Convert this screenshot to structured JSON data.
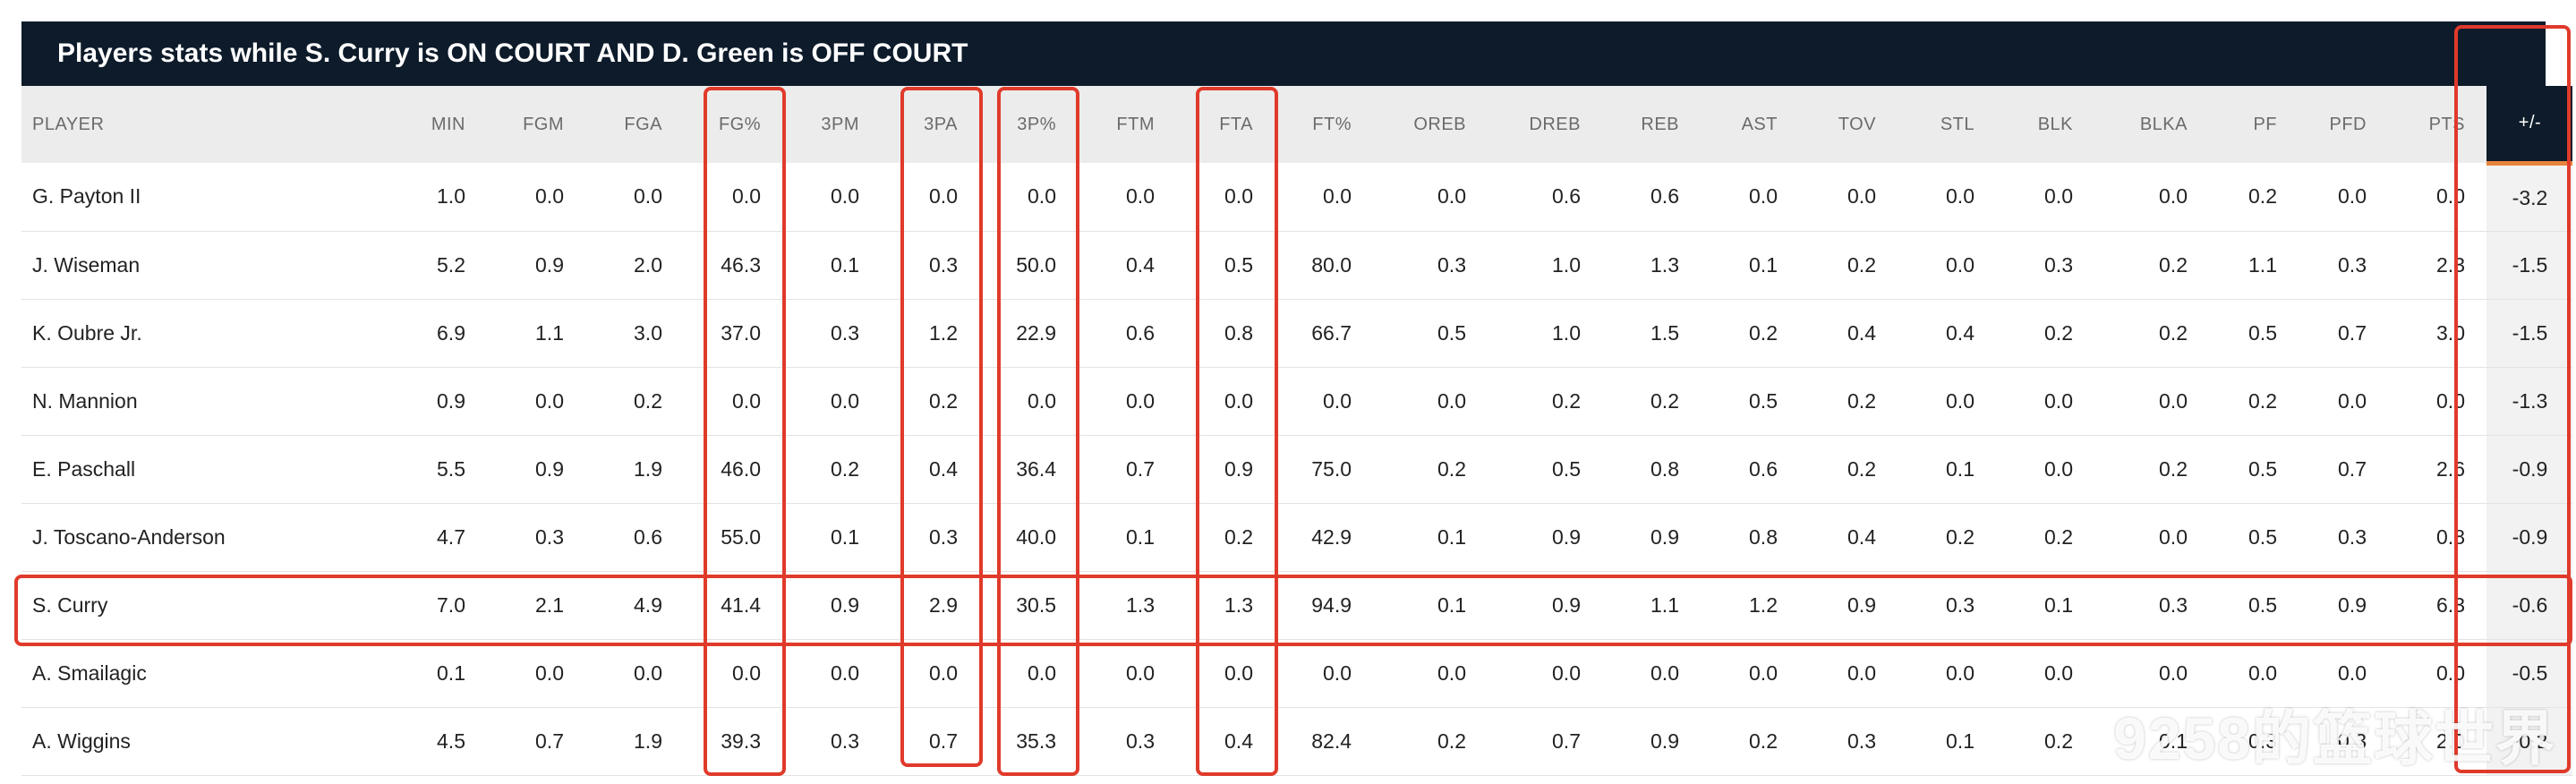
{
  "title": "Players stats while S. Curry is ON COURT AND D. Green is OFF COURT",
  "columns": [
    {
      "key": "player",
      "label": "PLAYER"
    },
    {
      "key": "min",
      "label": "MIN"
    },
    {
      "key": "fgm",
      "label": "FGM"
    },
    {
      "key": "fga",
      "label": "FGA"
    },
    {
      "key": "fg_pct",
      "label": "FG%"
    },
    {
      "key": "tpm",
      "label": "3PM"
    },
    {
      "key": "tpa",
      "label": "3PA"
    },
    {
      "key": "tp_pct",
      "label": "3P%"
    },
    {
      "key": "ftm",
      "label": "FTM"
    },
    {
      "key": "fta",
      "label": "FTA"
    },
    {
      "key": "ft_pct",
      "label": "FT%"
    },
    {
      "key": "oreb",
      "label": "OREB"
    },
    {
      "key": "dreb",
      "label": "DREB"
    },
    {
      "key": "reb",
      "label": "REB"
    },
    {
      "key": "ast",
      "label": "AST"
    },
    {
      "key": "tov",
      "label": "TOV"
    },
    {
      "key": "stl",
      "label": "STL"
    },
    {
      "key": "blk",
      "label": "BLK"
    },
    {
      "key": "blka",
      "label": "BLKA"
    },
    {
      "key": "pf",
      "label": "PF"
    },
    {
      "key": "pfd",
      "label": "PFD"
    },
    {
      "key": "pts",
      "label": "PTS"
    },
    {
      "key": "plus_minus",
      "label": "+/-"
    }
  ],
  "rows": [
    {
      "player": "G. Payton II",
      "min": "1.0",
      "fgm": "0.0",
      "fga": "0.0",
      "fg_pct": "0.0",
      "tpm": "0.0",
      "tpa": "0.0",
      "tp_pct": "0.0",
      "ftm": "0.0",
      "fta": "0.0",
      "ft_pct": "0.0",
      "oreb": "0.0",
      "dreb": "0.6",
      "reb": "0.6",
      "ast": "0.0",
      "tov": "0.0",
      "stl": "0.0",
      "blk": "0.0",
      "blka": "0.0",
      "pf": "0.2",
      "pfd": "0.0",
      "pts": "0.0",
      "plus_minus": "-3.2"
    },
    {
      "player": "J. Wiseman",
      "min": "5.2",
      "fgm": "0.9",
      "fga": "2.0",
      "fg_pct": "46.3",
      "tpm": "0.1",
      "tpa": "0.3",
      "tp_pct": "50.0",
      "ftm": "0.4",
      "fta": "0.5",
      "ft_pct": "80.0",
      "oreb": "0.3",
      "dreb": "1.0",
      "reb": "1.3",
      "ast": "0.1",
      "tov": "0.2",
      "stl": "0.0",
      "blk": "0.3",
      "blka": "0.2",
      "pf": "1.1",
      "pfd": "0.3",
      "pts": "2.3",
      "plus_minus": "-1.5"
    },
    {
      "player": "K. Oubre Jr.",
      "min": "6.9",
      "fgm": "1.1",
      "fga": "3.0",
      "fg_pct": "37.0",
      "tpm": "0.3",
      "tpa": "1.2",
      "tp_pct": "22.9",
      "ftm": "0.6",
      "fta": "0.8",
      "ft_pct": "66.7",
      "oreb": "0.5",
      "dreb": "1.0",
      "reb": "1.5",
      "ast": "0.2",
      "tov": "0.4",
      "stl": "0.4",
      "blk": "0.2",
      "blka": "0.2",
      "pf": "0.5",
      "pfd": "0.7",
      "pts": "3.0",
      "plus_minus": "-1.5"
    },
    {
      "player": "N. Mannion",
      "min": "0.9",
      "fgm": "0.0",
      "fga": "0.2",
      "fg_pct": "0.0",
      "tpm": "0.0",
      "tpa": "0.2",
      "tp_pct": "0.0",
      "ftm": "0.0",
      "fta": "0.0",
      "ft_pct": "0.0",
      "oreb": "0.0",
      "dreb": "0.2",
      "reb": "0.2",
      "ast": "0.5",
      "tov": "0.2",
      "stl": "0.0",
      "blk": "0.0",
      "blka": "0.0",
      "pf": "0.2",
      "pfd": "0.0",
      "pts": "0.0",
      "plus_minus": "-1.3"
    },
    {
      "player": "E. Paschall",
      "min": "5.5",
      "fgm": "0.9",
      "fga": "1.9",
      "fg_pct": "46.0",
      "tpm": "0.2",
      "tpa": "0.4",
      "tp_pct": "36.4",
      "ftm": "0.7",
      "fta": "0.9",
      "ft_pct": "75.0",
      "oreb": "0.2",
      "dreb": "0.5",
      "reb": "0.8",
      "ast": "0.6",
      "tov": "0.2",
      "stl": "0.1",
      "blk": "0.0",
      "blka": "0.2",
      "pf": "0.5",
      "pfd": "0.7",
      "pts": "2.6",
      "plus_minus": "-0.9"
    },
    {
      "player": "J. Toscano-Anderson",
      "min": "4.7",
      "fgm": "0.3",
      "fga": "0.6",
      "fg_pct": "55.0",
      "tpm": "0.1",
      "tpa": "0.3",
      "tp_pct": "40.0",
      "ftm": "0.1",
      "fta": "0.2",
      "ft_pct": "42.9",
      "oreb": "0.1",
      "dreb": "0.9",
      "reb": "0.9",
      "ast": "0.8",
      "tov": "0.4",
      "stl": "0.2",
      "blk": "0.2",
      "blka": "0.0",
      "pf": "0.5",
      "pfd": "0.3",
      "pts": "0.8",
      "plus_minus": "-0.9"
    },
    {
      "player": "S. Curry",
      "min": "7.0",
      "fgm": "2.1",
      "fga": "4.9",
      "fg_pct": "41.4",
      "tpm": "0.9",
      "tpa": "2.9",
      "tp_pct": "30.5",
      "ftm": "1.3",
      "fta": "1.3",
      "ft_pct": "94.9",
      "oreb": "0.1",
      "dreb": "0.9",
      "reb": "1.1",
      "ast": "1.2",
      "tov": "0.9",
      "stl": "0.3",
      "blk": "0.1",
      "blka": "0.3",
      "pf": "0.5",
      "pfd": "0.9",
      "pts": "6.3",
      "plus_minus": "-0.6"
    },
    {
      "player": "A. Smailagic",
      "min": "0.1",
      "fgm": "0.0",
      "fga": "0.0",
      "fg_pct": "0.0",
      "tpm": "0.0",
      "tpa": "0.0",
      "tp_pct": "0.0",
      "ftm": "0.0",
      "fta": "0.0",
      "ft_pct": "0.0",
      "oreb": "0.0",
      "dreb": "0.0",
      "reb": "0.0",
      "ast": "0.0",
      "tov": "0.0",
      "stl": "0.0",
      "blk": "0.0",
      "blka": "0.0",
      "pf": "0.0",
      "pfd": "0.0",
      "pts": "0.0",
      "plus_minus": "-0.5"
    },
    {
      "player": "A. Wiggins",
      "min": "4.5",
      "fgm": "0.7",
      "fga": "1.9",
      "fg_pct": "39.3",
      "tpm": "0.3",
      "tpa": "0.7",
      "tp_pct": "35.3",
      "ftm": "0.3",
      "fta": "0.4",
      "ft_pct": "82.4",
      "oreb": "0.2",
      "dreb": "0.7",
      "reb": "0.9",
      "ast": "0.2",
      "tov": "0.3",
      "stl": "0.1",
      "blk": "0.2",
      "blka": "0.1",
      "pf": "0.3",
      "pfd": "0.3",
      "pts": "2.0",
      "plus_minus": "-0.2"
    }
  ],
  "watermark": "9258的篮球世界",
  "colors": {
    "header_bg": "#0d1b2a",
    "link": "#2a6bbf",
    "highlight": "#e03a2b",
    "accent": "#e8833a"
  }
}
